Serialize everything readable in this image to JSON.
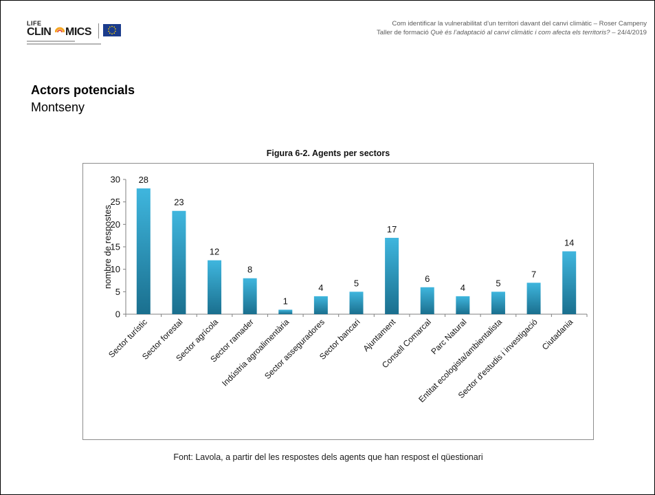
{
  "logo": {
    "life": "LIFE",
    "clin": "CLIN",
    "mics": "MICS",
    "icon": "eu-flag-icon"
  },
  "header": {
    "line1": "Com identificar la vulnerabilitat d’un territori davant del canvi climàtic – Roser Campeny",
    "line2_prefix": "Taller de formació ",
    "line2_italic": "Què és l’adaptació al canvi climàtic i com afecta els territoris?",
    "line2_suffix": " – 24/4/2019"
  },
  "slide": {
    "title": "Actors potencials",
    "subtitle": "Montseny"
  },
  "chart_data": {
    "type": "bar",
    "title": "Figura 6-2. Agents per sectors",
    "xlabel": "",
    "ylabel": "nombre de respostes",
    "ylim": [
      0,
      30
    ],
    "yticks": [
      0,
      5,
      10,
      15,
      20,
      25,
      30
    ],
    "grid": false,
    "categories": [
      "Sector turístic",
      "Sector forestal",
      "Sector agrícola",
      "Sector ramader",
      "Indústria agroalimentària",
      "Sector asseguradores",
      "Sector bancari",
      "Ajuntament",
      "Consell Comarcal",
      "Parc Natural",
      "Entitat ecologista/ambientalista",
      "Sector d'estudis i investigació",
      "Ciutadania"
    ],
    "values": [
      28,
      23,
      12,
      8,
      1,
      4,
      5,
      17,
      6,
      4,
      5,
      7,
      14
    ],
    "data_labels": true,
    "bar_color_top": "#3fb6de",
    "bar_color_bottom": "#1a6f8e"
  },
  "source": "Font: Lavola, a partir del les respostes dels agents que han respost el qüestionari"
}
